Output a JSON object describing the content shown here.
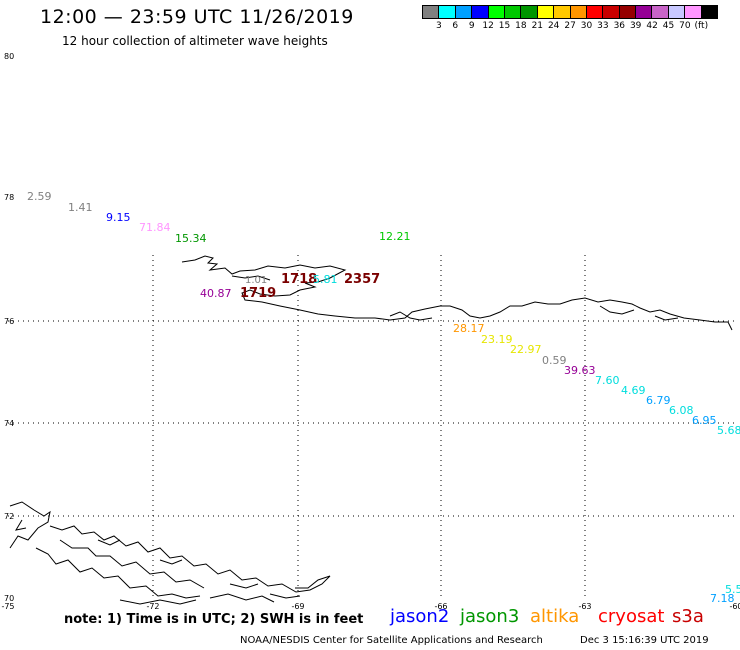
{
  "title": "12:00 — 23:59 UTC 11/26/2019",
  "subtitle": "12 hour collection of altimeter wave heights",
  "legend": {
    "colors": [
      "#808080",
      "#00ffff",
      "#00a0ff",
      "#0000ff",
      "#00ff00",
      "#00c800",
      "#009600",
      "#ffff00",
      "#ffc800",
      "#ff9600",
      "#ff0000",
      "#c80000",
      "#960000",
      "#960096",
      "#c864c8",
      "#c8c8ff",
      "#ff96ff",
      "#000000"
    ],
    "labels": [
      "3",
      "6",
      "9",
      "12",
      "15",
      "18",
      "21",
      "24",
      "27",
      "30",
      "33",
      "36",
      "39",
      "42",
      "45",
      "70",
      "(ft)"
    ]
  },
  "axes": {
    "lat_labels": [
      "80",
      "78",
      "76",
      "74",
      "72",
      "70"
    ],
    "lon_labels": [
      "-75",
      "-72",
      "-69",
      "-66",
      "-63",
      "-60"
    ]
  },
  "readings": [
    {
      "text": "2.59",
      "color": "#808080"
    },
    {
      "text": "1.41",
      "color": "#808080"
    },
    {
      "text": "9.15",
      "color": "#0000ff"
    },
    {
      "text": "71.84",
      "color": "#ff96ff"
    },
    {
      "text": "15.34",
      "color": "#009600"
    },
    {
      "text": "12.21",
      "color": "#00c800"
    },
    {
      "text": "1.01",
      "color": "#808080"
    },
    {
      "text": "1718",
      "color": "#7a0000"
    },
    {
      "text": "5.81",
      "color": "#00dddd"
    },
    {
      "text": "2357",
      "color": "#7a0000"
    },
    {
      "text": "40.87",
      "color": "#960096"
    },
    {
      "text": "1719",
      "color": "#7a0000"
    },
    {
      "text": "28.17",
      "color": "#ff9600"
    },
    {
      "text": "23.19",
      "color": "#e6e600"
    },
    {
      "text": "22.97",
      "color": "#e6e600"
    },
    {
      "text": "0.59",
      "color": "#808080"
    },
    {
      "text": "39.63",
      "color": "#960096"
    },
    {
      "text": "7.60",
      "color": "#00dddd"
    },
    {
      "text": "4.69",
      "color": "#00dddd"
    },
    {
      "text": "6.79",
      "color": "#00a0ff"
    },
    {
      "text": "6.08",
      "color": "#00dddd"
    },
    {
      "text": "6.95",
      "color": "#00a0ff"
    },
    {
      "text": "5.68",
      "color": "#00dddd"
    },
    {
      "text": "5.5",
      "color": "#00dddd"
    },
    {
      "text": "7.18",
      "color": "#00a0ff"
    }
  ],
  "footer": {
    "note": "note: 1) Time is in UTC; 2) SWH is in feet",
    "satellites": [
      {
        "name": "jason2",
        "color": "#0000ff"
      },
      {
        "name": "jason3",
        "color": "#009600"
      },
      {
        "name": "altika",
        "color": "#ff9600"
      },
      {
        "name": "cryosat",
        "color": "#ff0000"
      },
      {
        "name": "s3a",
        "color": "#c80000"
      }
    ],
    "credit": "NOAA/NESDIS Center for Satellite Applications and Research",
    "timestamp": "Dec  3 15:16:39 UTC 2019"
  }
}
